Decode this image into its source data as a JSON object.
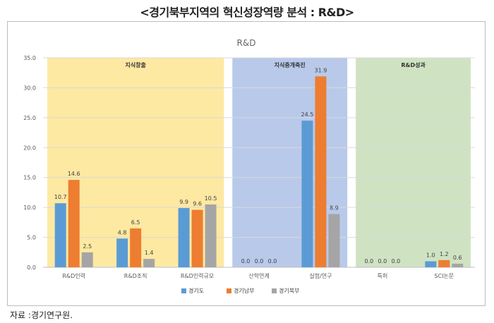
{
  "page": {
    "title": "<경기북부지역의 혁신성장역량 분석 : R&D>",
    "source": "자료 :경기연구원."
  },
  "chart_data": {
    "type": "bar",
    "title": "R&D",
    "xlabel": "",
    "ylabel": "",
    "ylim": [
      0,
      35
    ],
    "yticks": [
      "0.0",
      "5.0",
      "10.0",
      "15.0",
      "20.0",
      "25.0",
      "30.0",
      "35.0"
    ],
    "grid": true,
    "legend_position": "bottom",
    "categories": [
      "R&D인력",
      "R&D조직",
      "R&D인력규모",
      "산학연계",
      "실험/연구",
      "특허",
      "SCI논문"
    ],
    "series": [
      {
        "name": "경기도",
        "color": "#5b9bd5",
        "values": [
          10.7,
          4.8,
          9.9,
          0.0,
          24.5,
          0.0,
          1.0
        ]
      },
      {
        "name": "경기남부",
        "color": "#ed7d31",
        "values": [
          14.6,
          6.5,
          9.6,
          0.0,
          31.9,
          0.0,
          1.2
        ]
      },
      {
        "name": "경기북부",
        "color": "#a5a5a5",
        "values": [
          2.5,
          1.4,
          10.5,
          0.0,
          8.9,
          0.0,
          0.6
        ]
      }
    ],
    "data_labels": [
      [
        "10.7",
        "4.8",
        "9.9",
        "0.0",
        "24.5",
        "0.0",
        "1.0"
      ],
      [
        "14.6",
        "6.5",
        "9.6",
        "0.0",
        "31.9",
        "0.0",
        "1.2"
      ],
      [
        "2.5",
        "1.4",
        "10.5",
        "0.0",
        "8.9",
        "0.0",
        "0.6"
      ]
    ],
    "groups": [
      {
        "label": "지식창출",
        "start": 0,
        "end": 2,
        "color": "#fde9a2"
      },
      {
        "label": "지식중개축진",
        "start": 3,
        "end": 4,
        "color": "#b9c9ea"
      },
      {
        "label": "R&D성과",
        "start": 5,
        "end": 6,
        "color": "#cfe3c2"
      }
    ]
  }
}
